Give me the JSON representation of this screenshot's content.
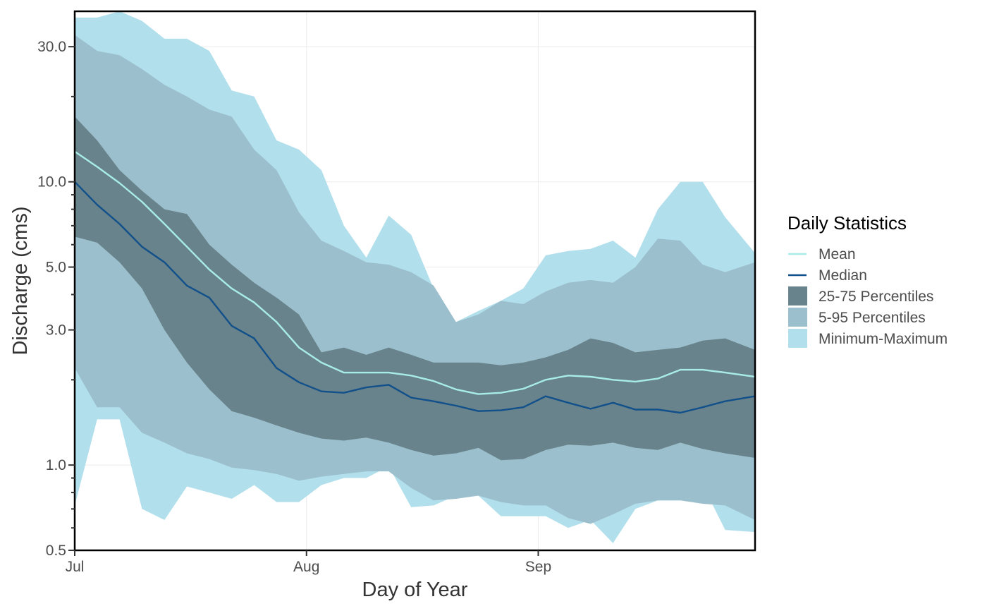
{
  "chart_data": {
    "type": "area",
    "title": "",
    "xlabel": "Day of Year",
    "ylabel": "Discharge (cms)",
    "x_range_days": [
      1,
      92
    ],
    "y_scale": "log",
    "ylim": [
      0.5,
      40
    ],
    "x_ticks": [
      {
        "day": 1,
        "label": "Jul"
      },
      {
        "day": 32,
        "label": "Aug"
      },
      {
        "day": 63,
        "label": "Sep"
      }
    ],
    "y_ticks": [
      {
        "value": 0.5,
        "label": "0.5"
      },
      {
        "value": 1,
        "label": "1.0"
      },
      {
        "value": 3,
        "label": "3.0"
      },
      {
        "value": 5,
        "label": "5.0"
      },
      {
        "value": 10,
        "label": "10.0"
      },
      {
        "value": 30,
        "label": "30.0"
      }
    ],
    "grid": true,
    "legend": {
      "title": "Daily Statistics",
      "placement": "right",
      "items": [
        {
          "label": "Mean",
          "kind": "line",
          "color": "#a8ece8"
        },
        {
          "label": "Median",
          "kind": "line",
          "color": "#11508a"
        },
        {
          "label": "25-75 Percentiles",
          "kind": "fill",
          "color": "#68838b"
        },
        {
          "label": "5-95 Percentiles",
          "kind": "fill",
          "color": "#9bbfcc"
        },
        {
          "label": "Minimum-Maximum",
          "kind": "fill",
          "color": "#b2dfec"
        }
      ]
    },
    "day": [
      1,
      4,
      7,
      10,
      13,
      16,
      19,
      22,
      25,
      28,
      31,
      34,
      37,
      40,
      43,
      46,
      49,
      52,
      55,
      58,
      61,
      64,
      67,
      70,
      73,
      76,
      79,
      82,
      85,
      88,
      92
    ],
    "series": [
      {
        "name": "Minimum-Maximum",
        "role": "band",
        "color": "#b2dfec",
        "lower": [
          0.72,
          1.45,
          1.45,
          0.7,
          0.64,
          0.84,
          0.8,
          0.76,
          0.85,
          0.74,
          0.74,
          0.85,
          0.9,
          0.9,
          0.99,
          0.71,
          0.72,
          0.78,
          0.78,
          0.66,
          0.66,
          0.66,
          0.6,
          0.64,
          0.53,
          0.7,
          0.75,
          0.75,
          0.85,
          0.59,
          0.58
        ],
        "upper": [
          38,
          38,
          40,
          37,
          32,
          32,
          29,
          21,
          20,
          14,
          13,
          11,
          7,
          5.4,
          7.6,
          6.5,
          4.2,
          3.2,
          3.5,
          3.8,
          4.2,
          5.5,
          5.7,
          5.8,
          6.2,
          5.4,
          8,
          10,
          10,
          7.5,
          5.6
        ]
      },
      {
        "name": "5-95 Percentiles",
        "role": "band",
        "color": "#9bbfcc",
        "lower": [
          2.2,
          1.6,
          1.6,
          1.3,
          1.2,
          1.1,
          1.05,
          0.98,
          0.96,
          0.93,
          0.88,
          0.91,
          0.93,
          0.95,
          0.95,
          0.83,
          0.75,
          0.76,
          0.78,
          0.74,
          0.72,
          0.72,
          0.65,
          0.62,
          0.67,
          0.73,
          0.75,
          0.75,
          0.73,
          0.72,
          0.64
        ]
      },
      {
        "name": "5-95 Percentiles",
        "role": "band",
        "color": "#9bbfcc",
        "upper": [
          33,
          29,
          28,
          25,
          22,
          20,
          18,
          17,
          13,
          11,
          7.8,
          6.2,
          5.7,
          5.2,
          5.1,
          4.8,
          4.3,
          3.2,
          3.4,
          3.8,
          3.7,
          4.1,
          4.4,
          4.5,
          4.4,
          5.0,
          6.3,
          6.2,
          5.1,
          4.8,
          5.2
        ]
      }
    ],
    "bands": {
      "q25": [
        6.4,
        6.1,
        5.2,
        4.2,
        3.0,
        2.3,
        1.85,
        1.55,
        1.47,
        1.38,
        1.3,
        1.24,
        1.22,
        1.25,
        1.2,
        1.13,
        1.08,
        1.1,
        1.15,
        1.04,
        1.05,
        1.13,
        1.18,
        1.17,
        1.2,
        1.15,
        1.13,
        1.2,
        1.14,
        1.1,
        1.06
      ],
      "q75": [
        17,
        14,
        11,
        9.3,
        8.0,
        7.7,
        6.0,
        5.1,
        4.4,
        3.9,
        3.4,
        2.5,
        2.6,
        2.45,
        2.6,
        2.45,
        2.3,
        2.3,
        2.3,
        2.25,
        2.3,
        2.4,
        2.55,
        2.8,
        2.7,
        2.5,
        2.55,
        2.6,
        2.75,
        2.8,
        2.55
      ]
    },
    "lines": {
      "mean": [
        12.8,
        11.3,
        9.9,
        8.5,
        7.1,
        5.9,
        4.9,
        4.2,
        3.75,
        3.2,
        2.6,
        2.3,
        2.12,
        2.12,
        2.12,
        2.07,
        1.98,
        1.85,
        1.78,
        1.8,
        1.86,
        2.0,
        2.07,
        2.05,
        2.0,
        1.97,
        2.02,
        2.17,
        2.17,
        2.12,
        2.05
      ],
      "median": [
        10.0,
        8.3,
        7.1,
        5.9,
        5.2,
        4.3,
        3.9,
        3.1,
        2.8,
        2.2,
        1.96,
        1.82,
        1.8,
        1.88,
        1.92,
        1.73,
        1.68,
        1.62,
        1.55,
        1.56,
        1.6,
        1.75,
        1.66,
        1.58,
        1.66,
        1.57,
        1.57,
        1.53,
        1.6,
        1.68,
        1.75
      ]
    }
  }
}
